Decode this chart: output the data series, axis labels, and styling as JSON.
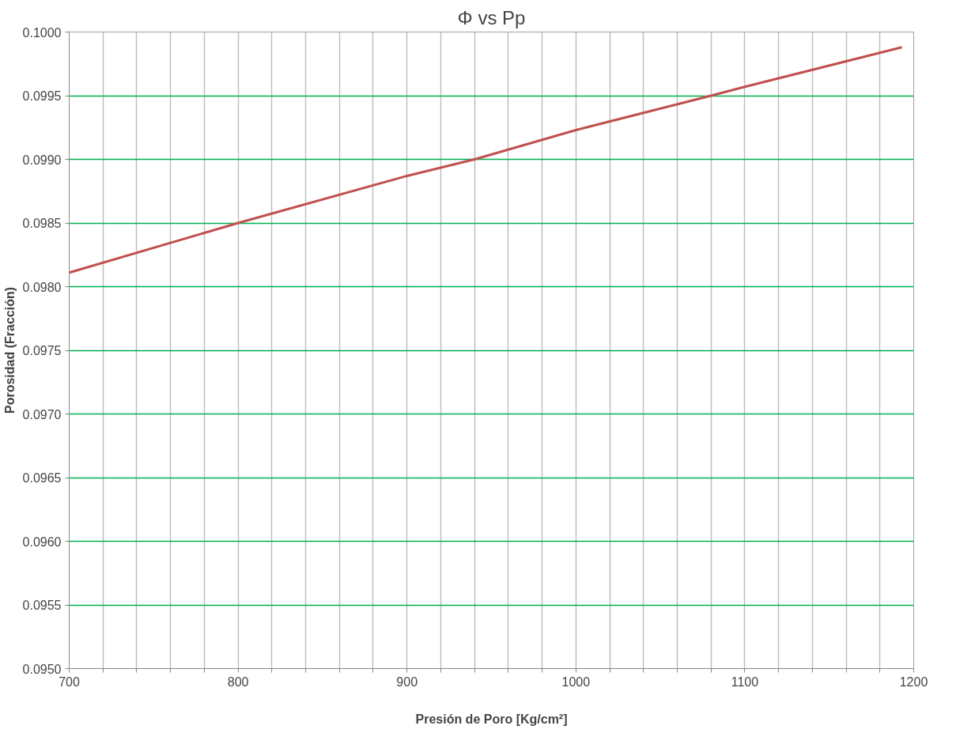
{
  "chart_data": {
    "type": "line",
    "title": "Φ vs Pp",
    "xlabel": "Presión de Poro [Kg/cm²]",
    "ylabel": "Porosidad (Fracción)",
    "x": [
      700,
      800,
      900,
      940,
      1000,
      1080,
      1100,
      1193
    ],
    "series": [
      {
        "color": "#c0504d",
        "values": [
          0.09811,
          0.0985,
          0.09887,
          0.099,
          0.09923,
          0.0995,
          0.09957,
          0.09988
        ]
      }
    ],
    "xlim": [
      700,
      1200
    ],
    "ylim": [
      0.095,
      0.1
    ],
    "xticks": [
      700,
      {
        "value": 720,
        "label": null
      },
      {
        "value": 740,
        "label": null
      },
      {
        "value": 760,
        "label": null
      },
      {
        "value": 780,
        "label": null
      },
      800,
      {
        "value": 820,
        "label": null
      },
      {
        "value": 840,
        "label": null
      },
      {
        "value": 860,
        "label": null
      },
      {
        "value": 880,
        "label": null
      },
      900,
      {
        "value": 920,
        "label": null
      },
      {
        "value": 940,
        "label": null
      },
      {
        "value": 960,
        "label": null
      },
      {
        "value": 980,
        "label": null
      },
      1000,
      {
        "value": 1020,
        "label": null
      },
      {
        "value": 1040,
        "label": null
      },
      {
        "value": 1060,
        "label": null
      },
      {
        "value": 1080,
        "label": null
      },
      1100,
      {
        "value": 1120,
        "label": null
      },
      {
        "value": 1140,
        "label": null
      },
      {
        "value": 1160,
        "label": null
      },
      {
        "value": 1180,
        "label": null
      },
      1200
    ],
    "yticks": [
      {
        "value": 0.095,
        "label": "0.0950"
      },
      {
        "value": 0.0955,
        "label": "0.0955"
      },
      {
        "value": 0.096,
        "label": "0.0960"
      },
      {
        "value": 0.0965,
        "label": "0.0965"
      },
      {
        "value": 0.097,
        "label": "0.0970"
      },
      {
        "value": 0.0975,
        "label": "0.0975"
      },
      {
        "value": 0.098,
        "label": "0.0980"
      },
      {
        "value": 0.0985,
        "label": "0.0985"
      },
      {
        "value": 0.099,
        "label": "0.0990"
      },
      {
        "value": 0.0995,
        "label": "0.0995"
      },
      {
        "value": 0.1,
        "label": "0.1000"
      }
    ],
    "grid": true,
    "marker": "none",
    "line_style": "solid"
  }
}
